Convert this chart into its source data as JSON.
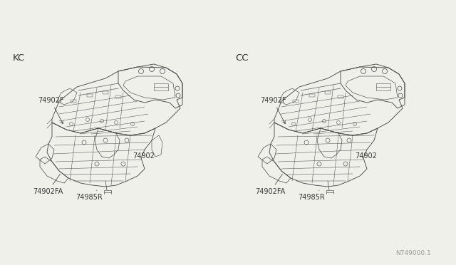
{
  "bg_color": "#f0f0eb",
  "line_color": "#4a4a4a",
  "text_color": "#333333",
  "watermark": "N749000.1",
  "left_label": "KC",
  "right_label": "CC",
  "lw": 0.65,
  "font_size": 7.0,
  "label_font_size": 9.5
}
